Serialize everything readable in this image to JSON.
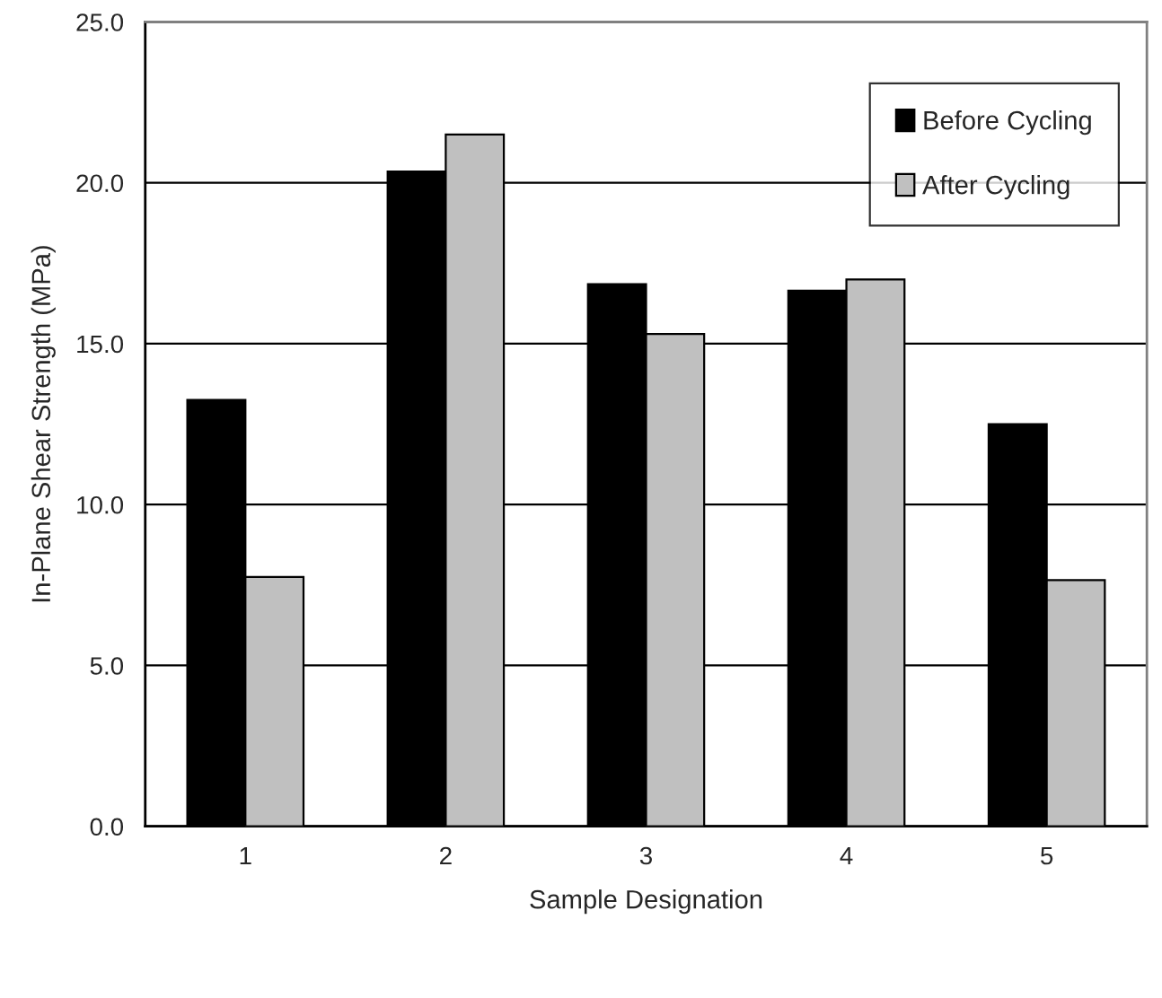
{
  "chart_data": {
    "type": "bar",
    "xlabel": "Sample Designation",
    "ylabel": "In-Plane Shear Strength (MPa)",
    "categories": [
      "1",
      "2",
      "3",
      "4",
      "5"
    ],
    "series": [
      {
        "name": "Before Cycling",
        "color": "#000000",
        "values": [
          13.25,
          20.35,
          16.85,
          16.65,
          12.5
        ]
      },
      {
        "name": "After Cycling",
        "color": "#c0c0c0",
        "values": [
          7.75,
          21.5,
          15.3,
          17.0,
          7.65
        ]
      }
    ],
    "ylim": [
      0,
      25
    ],
    "yticks": [
      {
        "value": 0,
        "label": "0.0"
      },
      {
        "value": 5,
        "label": "5.0"
      },
      {
        "value": 10,
        "label": "10.0"
      },
      {
        "value": 15,
        "label": "15.0"
      },
      {
        "value": 20,
        "label": "20.0"
      },
      {
        "value": 25,
        "label": "25.0"
      }
    ],
    "grid": "y",
    "legend": "top right"
  }
}
